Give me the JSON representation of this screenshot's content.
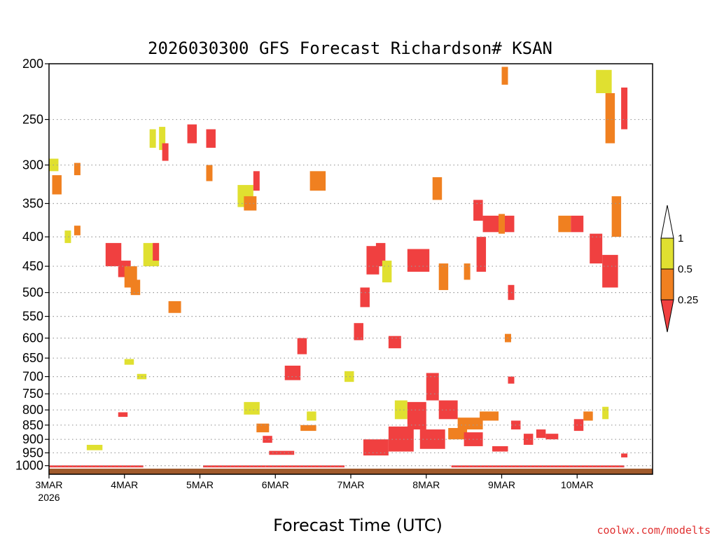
{
  "chart_data": {
    "type": "heatmap",
    "title": "2026030300 GFS Forecast Richardson# KSAN",
    "xlabel": "Forecast Time (UTC)",
    "ylabel": "",
    "credit": "coolwx.com/modelts",
    "y_axis": {
      "scale": "log-pressure",
      "range": [
        1035,
        200
      ],
      "ticks": [
        "200",
        "250",
        "300",
        "350",
        "400",
        "450",
        "500",
        "550",
        "600",
        "650",
        "700",
        "750",
        "800",
        "850",
        "900",
        "950",
        "1000"
      ]
    },
    "x_axis": {
      "range_hours": [
        0,
        192
      ],
      "ticks": [
        {
          "label": "3MAR",
          "sub": "2026",
          "hour": 0
        },
        {
          "label": "4MAR",
          "sub": "",
          "hour": 24
        },
        {
          "label": "5MAR",
          "sub": "",
          "hour": 48
        },
        {
          "label": "6MAR",
          "sub": "",
          "hour": 72
        },
        {
          "label": "7MAR",
          "sub": "",
          "hour": 96
        },
        {
          "label": "8MAR",
          "sub": "",
          "hour": 120
        },
        {
          "label": "9MAR",
          "sub": "",
          "hour": 144
        },
        {
          "label": "10MAR",
          "sub": "",
          "hour": 168
        }
      ]
    },
    "legend": {
      "placement": "right",
      "categories": [
        {
          "label": "1",
          "range": "> 1",
          "color": "#ffffff"
        },
        {
          "label": "0.5",
          "range": "0.5 - 1",
          "color": "#e0e030"
        },
        {
          "label": "0.25",
          "range": "0.25 - 0.5",
          "color": "#f08020"
        },
        {
          "label": "",
          "range": "< 0.25",
          "color": "#f04040"
        }
      ],
      "labels": [
        "1",
        "0.5",
        "0.25"
      ]
    },
    "colors": {
      "yellow": "#e0e030",
      "orange": "#f08020",
      "red": "#f04040",
      "ground": "#a05a2c"
    },
    "ground_pressure": 1012,
    "cells": [
      {
        "t": 0,
        "p": 1003,
        "c": "red",
        "w": 30,
        "h": 8
      },
      {
        "t": 1,
        "p": 325,
        "c": "orange",
        "w": 3,
        "h": 25
      },
      {
        "t": 0,
        "p": 300,
        "c": "yellow",
        "w": 3,
        "h": 15
      },
      {
        "t": 8,
        "p": 305,
        "c": "orange",
        "w": 2,
        "h": 15
      },
      {
        "t": 5,
        "p": 400,
        "c": "yellow",
        "w": 2,
        "h": 20
      },
      {
        "t": 8,
        "p": 390,
        "c": "orange",
        "w": 2,
        "h": 15
      },
      {
        "t": 12,
        "p": 930,
        "c": "yellow",
        "w": 5,
        "h": 20
      },
      {
        "t": 18,
        "p": 430,
        "c": "red",
        "w": 5,
        "h": 40
      },
      {
        "t": 22,
        "p": 455,
        "c": "red",
        "w": 4,
        "h": 30
      },
      {
        "t": 24,
        "p": 470,
        "c": "orange",
        "w": 4,
        "h": 40
      },
      {
        "t": 26,
        "p": 490,
        "c": "orange",
        "w": 3,
        "h": 30
      },
      {
        "t": 22,
        "p": 815,
        "c": "red",
        "w": 3,
        "h": 15
      },
      {
        "t": 24,
        "p": 660,
        "c": "yellow",
        "w": 3,
        "h": 15
      },
      {
        "t": 28,
        "p": 700,
        "c": "yellow",
        "w": 3,
        "h": 15
      },
      {
        "t": 30,
        "p": 430,
        "c": "yellow",
        "w": 5,
        "h": 40
      },
      {
        "t": 33,
        "p": 425,
        "c": "red",
        "w": 2,
        "h": 30
      },
      {
        "t": 32,
        "p": 270,
        "c": "yellow",
        "w": 2,
        "h": 20
      },
      {
        "t": 35,
        "p": 270,
        "c": "yellow",
        "w": 2,
        "h": 25
      },
      {
        "t": 36,
        "p": 285,
        "c": "red",
        "w": 2,
        "h": 20
      },
      {
        "t": 38,
        "p": 530,
        "c": "orange",
        "w": 4,
        "h": 25
      },
      {
        "t": 44,
        "p": 265,
        "c": "red",
        "w": 3,
        "h": 20
      },
      {
        "t": 50,
        "p": 270,
        "c": "red",
        "w": 3,
        "h": 20
      },
      {
        "t": 50,
        "p": 310,
        "c": "orange",
        "w": 2,
        "h": 20
      },
      {
        "t": 49,
        "p": 1003,
        "c": "red",
        "w": 20,
        "h": 8
      },
      {
        "t": 60,
        "p": 340,
        "c": "yellow",
        "w": 5,
        "h": 30
      },
      {
        "t": 62,
        "p": 350,
        "c": "orange",
        "w": 4,
        "h": 20
      },
      {
        "t": 65,
        "p": 320,
        "c": "red",
        "w": 2,
        "h": 25
      },
      {
        "t": 62,
        "p": 795,
        "c": "yellow",
        "w": 5,
        "h": 40
      },
      {
        "t": 66,
        "p": 860,
        "c": "orange",
        "w": 4,
        "h": 30
      },
      {
        "t": 68,
        "p": 900,
        "c": "red",
        "w": 3,
        "h": 25
      },
      {
        "t": 70,
        "p": 950,
        "c": "red",
        "w": 8,
        "h": 15
      },
      {
        "t": 75,
        "p": 690,
        "c": "red",
        "w": 5,
        "h": 40
      },
      {
        "t": 79,
        "p": 620,
        "c": "red",
        "w": 3,
        "h": 40
      },
      {
        "t": 80,
        "p": 860,
        "c": "orange",
        "w": 5,
        "h": 20
      },
      {
        "t": 82,
        "p": 820,
        "c": "yellow",
        "w": 3,
        "h": 30
      },
      {
        "t": 83,
        "p": 320,
        "c": "orange",
        "w": 5,
        "h": 25
      },
      {
        "t": 69,
        "p": 1003,
        "c": "red",
        "w": 25,
        "h": 8
      },
      {
        "t": 94,
        "p": 700,
        "c": "yellow",
        "w": 3,
        "h": 30
      },
      {
        "t": 97,
        "p": 585,
        "c": "red",
        "w": 3,
        "h": 40
      },
      {
        "t": 99,
        "p": 510,
        "c": "red",
        "w": 3,
        "h": 40
      },
      {
        "t": 101,
        "p": 440,
        "c": "red",
        "w": 4,
        "h": 50
      },
      {
        "t": 104,
        "p": 430,
        "c": "red",
        "w": 3,
        "h": 40
      },
      {
        "t": 106,
        "p": 460,
        "c": "yellow",
        "w": 3,
        "h": 40
      },
      {
        "t": 108,
        "p": 610,
        "c": "red",
        "w": 4,
        "h": 30
      },
      {
        "t": 100,
        "p": 930,
        "c": "red",
        "w": 8,
        "h": 60
      },
      {
        "t": 108,
        "p": 900,
        "c": "red",
        "w": 8,
        "h": 90
      },
      {
        "t": 110,
        "p": 800,
        "c": "yellow",
        "w": 4,
        "h": 60
      },
      {
        "t": 114,
        "p": 440,
        "c": "red",
        "w": 7,
        "h": 40
      },
      {
        "t": 114,
        "p": 820,
        "c": "red",
        "w": 6,
        "h": 90
      },
      {
        "t": 118,
        "p": 900,
        "c": "red",
        "w": 8,
        "h": 70
      },
      {
        "t": 120,
        "p": 730,
        "c": "red",
        "w": 4,
        "h": 80
      },
      {
        "t": 124,
        "p": 800,
        "c": "red",
        "w": 6,
        "h": 60
      },
      {
        "t": 127,
        "p": 880,
        "c": "orange",
        "w": 6,
        "h": 40
      },
      {
        "t": 122,
        "p": 330,
        "c": "orange",
        "w": 3,
        "h": 30
      },
      {
        "t": 124,
        "p": 470,
        "c": "orange",
        "w": 3,
        "h": 50
      },
      {
        "t": 130,
        "p": 845,
        "c": "orange",
        "w": 8,
        "h": 40
      },
      {
        "t": 132,
        "p": 900,
        "c": "red",
        "w": 6,
        "h": 50
      },
      {
        "t": 135,
        "p": 360,
        "c": "red",
        "w": 3,
        "h": 30
      },
      {
        "t": 136,
        "p": 430,
        "c": "red",
        "w": 3,
        "h": 60
      },
      {
        "t": 132,
        "p": 460,
        "c": "orange",
        "w": 2,
        "h": 30
      },
      {
        "t": 137,
        "p": 820,
        "c": "orange",
        "w": 6,
        "h": 30
      },
      {
        "t": 138,
        "p": 380,
        "c": "red",
        "w": 6,
        "h": 25
      },
      {
        "t": 141,
        "p": 935,
        "c": "red",
        "w": 5,
        "h": 20
      },
      {
        "t": 144,
        "p": 210,
        "c": "orange",
        "w": 2,
        "h": 15
      },
      {
        "t": 143,
        "p": 380,
        "c": "orange",
        "w": 2,
        "h": 30
      },
      {
        "t": 145,
        "p": 380,
        "c": "red",
        "w": 3,
        "h": 25
      },
      {
        "t": 147,
        "p": 850,
        "c": "red",
        "w": 3,
        "h": 30
      },
      {
        "t": 145,
        "p": 600,
        "c": "orange",
        "w": 2,
        "h": 20
      },
      {
        "t": 146,
        "p": 710,
        "c": "red",
        "w": 2,
        "h": 20
      },
      {
        "t": 146,
        "p": 500,
        "c": "red",
        "w": 2,
        "h": 30
      },
      {
        "t": 151,
        "p": 900,
        "c": "red",
        "w": 3,
        "h": 40
      },
      {
        "t": 155,
        "p": 880,
        "c": "red",
        "w": 3,
        "h": 30
      },
      {
        "t": 158,
        "p": 890,
        "c": "red",
        "w": 4,
        "h": 20
      },
      {
        "t": 162,
        "p": 380,
        "c": "orange",
        "w": 4,
        "h": 25
      },
      {
        "t": 166,
        "p": 380,
        "c": "red",
        "w": 4,
        "h": 25
      },
      {
        "t": 167,
        "p": 850,
        "c": "red",
        "w": 3,
        "h": 40
      },
      {
        "t": 170,
        "p": 820,
        "c": "orange",
        "w": 3,
        "h": 30
      },
      {
        "t": 172,
        "p": 420,
        "c": "red",
        "w": 4,
        "h": 50
      },
      {
        "t": 176,
        "p": 460,
        "c": "red",
        "w": 5,
        "h": 60
      },
      {
        "t": 179,
        "p": 370,
        "c": "orange",
        "w": 3,
        "h": 60
      },
      {
        "t": 182,
        "p": 240,
        "c": "red",
        "w": 2,
        "h": 40
      },
      {
        "t": 177,
        "p": 250,
        "c": "orange",
        "w": 3,
        "h": 50
      },
      {
        "t": 174,
        "p": 215,
        "c": "yellow",
        "w": 5,
        "h": 20
      },
      {
        "t": 176,
        "p": 810,
        "c": "yellow",
        "w": 2,
        "h": 40
      },
      {
        "t": 182,
        "p": 960,
        "c": "red",
        "w": 2,
        "h": 15
      },
      {
        "t": 128,
        "p": 1003,
        "c": "red",
        "w": 55,
        "h": 8
      }
    ]
  }
}
